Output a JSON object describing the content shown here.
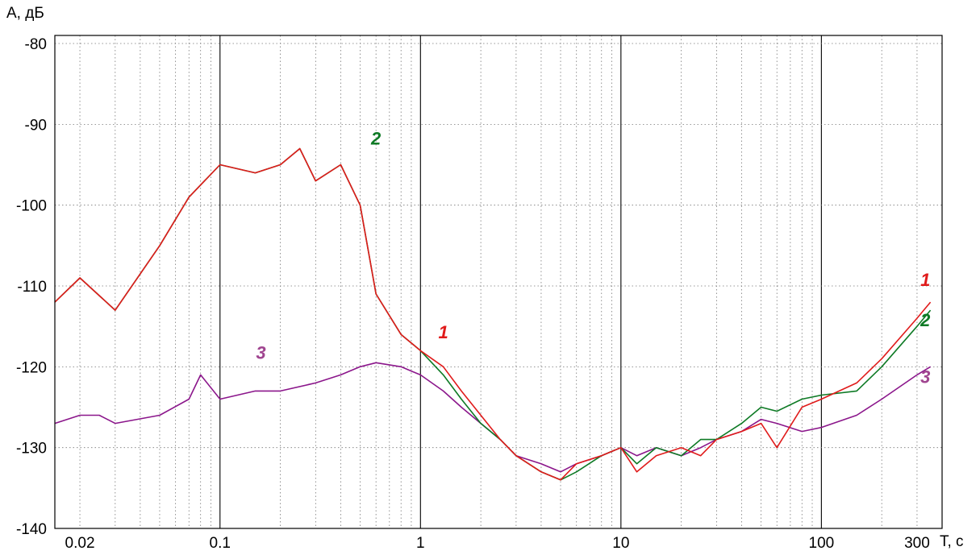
{
  "chart_data": {
    "type": "line",
    "title": "",
    "ylabel": "A, дБ",
    "xlabel": "T, с",
    "xscale": "log",
    "xlim": [
      0.015,
      400
    ],
    "ylim": [
      -140,
      -79
    ],
    "grid": true,
    "legend": "none (series numbers labeled inline on the plot)",
    "x_ticks": [
      {
        "value": 0.02,
        "label": "0.02"
      },
      {
        "value": 0.1,
        "label": "0.1"
      },
      {
        "value": 1,
        "label": "1"
      },
      {
        "value": 10,
        "label": "10"
      },
      {
        "value": 100,
        "label": "100"
      },
      {
        "value": 300,
        "label": "300"
      }
    ],
    "y_ticks": [
      {
        "value": -80,
        "label": "-80"
      },
      {
        "value": -90,
        "label": "-90"
      },
      {
        "value": -100,
        "label": "-100"
      },
      {
        "value": -110,
        "label": "-110"
      },
      {
        "value": -120,
        "label": "-120"
      },
      {
        "value": -130,
        "label": "-130"
      },
      {
        "value": -140,
        "label": "-140"
      }
    ],
    "series": [
      {
        "label": "1",
        "color": "#e01b1b",
        "x": [
          0.015,
          0.02,
          0.03,
          0.05,
          0.07,
          0.1,
          0.15,
          0.2,
          0.25,
          0.3,
          0.4,
          0.5,
          0.6,
          0.8,
          1,
          1.3,
          1.6,
          2,
          2.5,
          3,
          4,
          5,
          6,
          8,
          10,
          12,
          15,
          20,
          25,
          30,
          40,
          50,
          60,
          80,
          100,
          150,
          200,
          300,
          350
        ],
        "y": [
          -112,
          -109,
          -113,
          -105,
          -99,
          -95,
          -96,
          -95,
          -93,
          -97,
          -95,
          -100,
          -111,
          -116,
          -118,
          -120,
          -123,
          -126,
          -129,
          -131,
          -133,
          -134,
          -132,
          -131,
          -130,
          -133,
          -131,
          -130,
          -131,
          -129,
          -128,
          -127,
          -130,
          -125,
          -124,
          -122,
          -119,
          -114,
          -112
        ]
      },
      {
        "label": "2",
        "color": "#0e7a25",
        "x": [
          0.015,
          0.02,
          0.03,
          0.05,
          0.07,
          0.1,
          0.15,
          0.2,
          0.25,
          0.3,
          0.4,
          0.5,
          0.6,
          0.8,
          1,
          1.3,
          1.6,
          2,
          2.5,
          3,
          4,
          5,
          6,
          8,
          10,
          12,
          15,
          20,
          25,
          30,
          40,
          50,
          60,
          80,
          100,
          150,
          200,
          300,
          350
        ],
        "y": [
          -112,
          -109,
          -113,
          -105,
          -99,
          -95,
          -96,
          -95,
          -93,
          -97,
          -95,
          -100,
          -111,
          -116,
          -118,
          -121,
          -124,
          -127,
          -129,
          -131,
          -133,
          -134,
          -133,
          -131,
          -130,
          -132,
          -130,
          -131,
          -129,
          -129,
          -127,
          -125,
          -125.5,
          -124,
          -123.5,
          -123,
          -120,
          -115,
          -113
        ]
      },
      {
        "label": "3",
        "color": "#8b168b",
        "x": [
          0.015,
          0.02,
          0.025,
          0.03,
          0.05,
          0.07,
          0.08,
          0.1,
          0.15,
          0.2,
          0.3,
          0.4,
          0.5,
          0.6,
          0.8,
          1,
          1.3,
          1.6,
          2,
          2.5,
          3,
          4,
          5,
          6,
          8,
          10,
          12,
          15,
          20,
          25,
          30,
          40,
          50,
          60,
          80,
          100,
          150,
          200,
          300,
          350
        ],
        "y": [
          -127,
          -126,
          -126,
          -127,
          -126,
          -124,
          -121,
          -124,
          -123,
          -123,
          -122,
          -121,
          -120,
          -119.5,
          -120,
          -121,
          -123,
          -125,
          -127,
          -129,
          -131,
          -132,
          -133,
          -132,
          -131,
          -130,
          -131,
          -130,
          -131,
          -130,
          -129,
          -128,
          -126.5,
          -127,
          -128,
          -127.5,
          -126,
          -124,
          -121,
          -120
        ]
      }
    ],
    "annotations": [
      {
        "text": "1",
        "color": "#e01b1b",
        "x": 1.3,
        "y": -116.5
      },
      {
        "text": "2",
        "color": "#0e7a25",
        "x": 0.6,
        "y": -92.5
      },
      {
        "text": "3",
        "color": "#a04590",
        "x": 0.16,
        "y": -119
      },
      {
        "text": "1",
        "color": "#e01b1b",
        "x": 330,
        "y": -110
      },
      {
        "text": "2",
        "color": "#0e7a25",
        "x": 330,
        "y": -115
      },
      {
        "text": "3",
        "color": "#a04590",
        "x": 330,
        "y": -122
      }
    ]
  }
}
